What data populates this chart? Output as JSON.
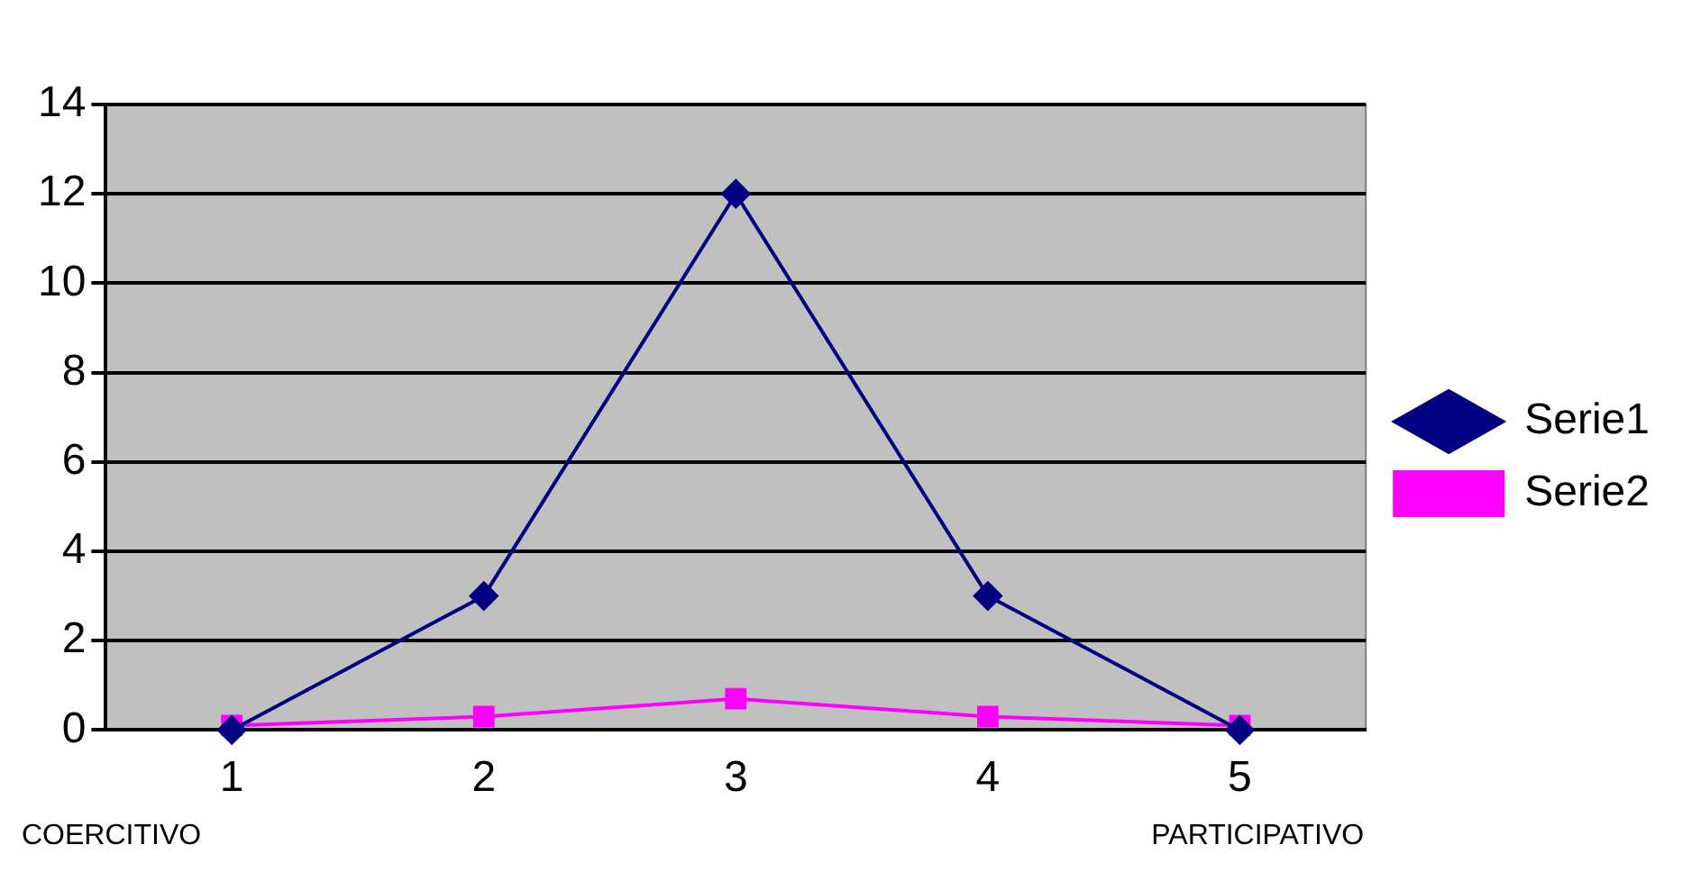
{
  "chart_data": {
    "type": "line",
    "categories": [
      "1",
      "2",
      "3",
      "4",
      "5"
    ],
    "series": [
      {
        "name": "Serie1",
        "color": "#000080",
        "marker": "diamond",
        "values": [
          0,
          3,
          12,
          3,
          0
        ]
      },
      {
        "name": "Serie2",
        "color": "#ff00ff",
        "marker": "square",
        "values": [
          0.1,
          0.3,
          0.7,
          0.3,
          0.1
        ]
      }
    ],
    "ylim": [
      0,
      14
    ],
    "yticks": [
      0,
      2,
      4,
      6,
      8,
      10,
      12,
      14
    ],
    "grid": "y",
    "legend": "right",
    "annotations": [
      "COERCITIVO",
      "PARTICIPATIVO"
    ]
  }
}
